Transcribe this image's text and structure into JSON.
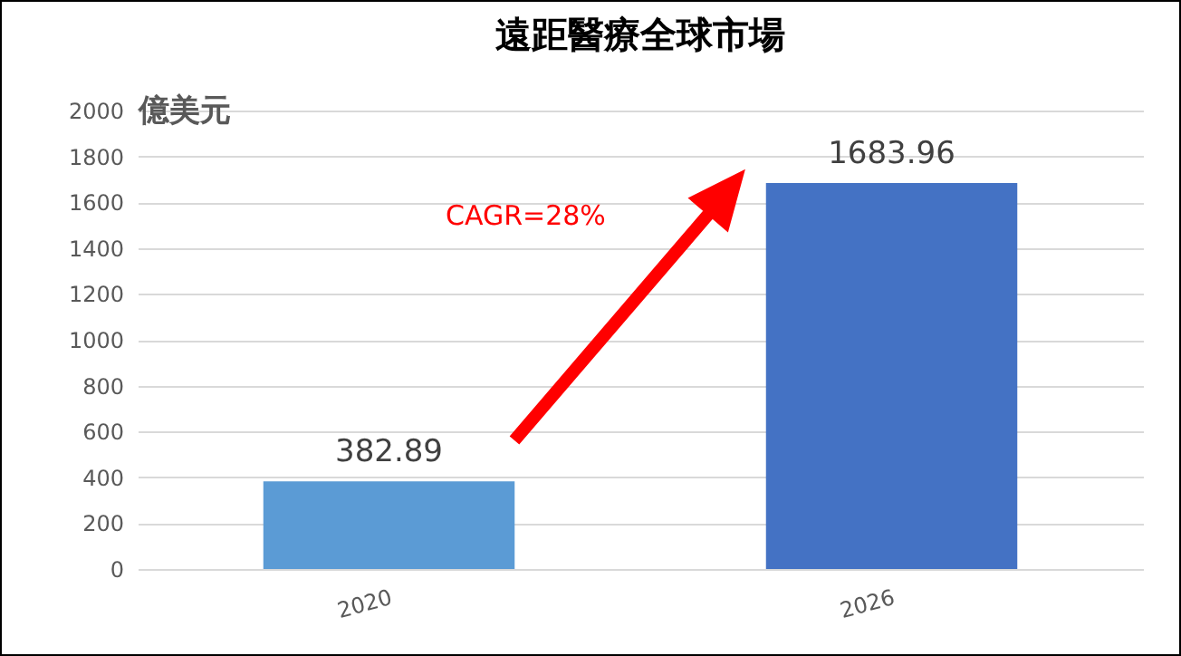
{
  "chart_data": {
    "type": "bar",
    "title": "遠距醫療全球市場",
    "ylabel": "億美元",
    "categories": [
      "2020",
      "2026"
    ],
    "values": [
      382.89,
      1683.96
    ],
    "colors": [
      "#5b9bd5",
      "#4472c4"
    ],
    "ylim": [
      0,
      2000
    ],
    "yticks": [
      0,
      200,
      400,
      600,
      800,
      1000,
      1200,
      1400,
      1600,
      1800,
      2000
    ],
    "grid": "y",
    "data_labels": true,
    "annotations": [
      "CAGR=28%"
    ]
  }
}
